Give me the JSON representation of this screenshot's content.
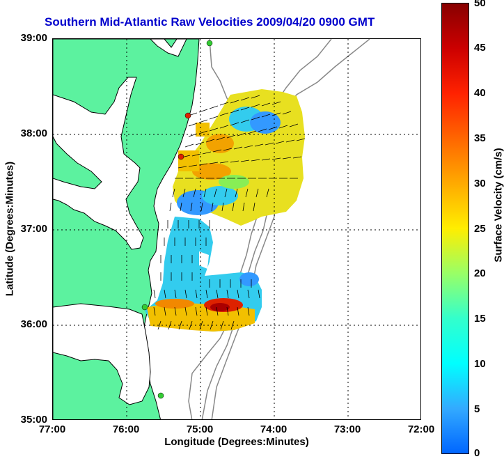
{
  "title": "Southern Mid-Atlantic Raw Velocities 2009/04/20 0900 GMT",
  "axes": {
    "xlabel": "Longitude (Degrees:Minutes)",
    "ylabel": "Latitude (Degrees:Minutes)",
    "x_ticks": [
      "77:00",
      "76:00",
      "75:00",
      "74:00",
      "73:00",
      "72:00"
    ],
    "y_ticks": [
      "39:00",
      "38:00",
      "37:00",
      "36:00",
      "35:00"
    ]
  },
  "colorbar": {
    "label": "Surface Velocity (cm/s)",
    "ticks": [
      "50",
      "45",
      "40",
      "35",
      "30",
      "25",
      "20",
      "15",
      "10",
      "5",
      "0"
    ]
  },
  "colors": {
    "land": "#5cf29f",
    "coastline": "#000000",
    "bathymetry": "#808080",
    "title": "#0000cc",
    "station_green": "#33cc33",
    "station_red": "#dd2200"
  }
}
